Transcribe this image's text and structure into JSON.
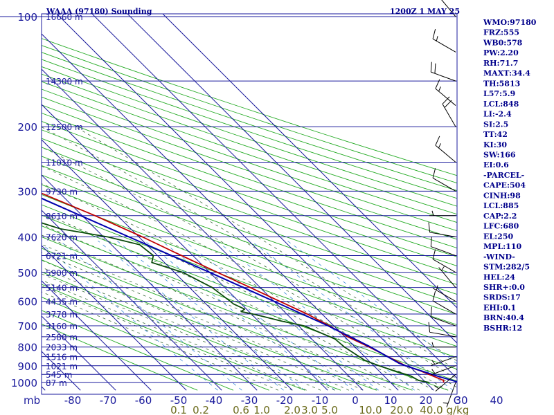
{
  "header": {
    "title": "WAAA (97180) Sounding",
    "valid_time": "1200Z  1 MAY 25"
  },
  "colors": {
    "isobar": "#1a1a9c",
    "isotherm_temp_labels": "#1a1a9c",
    "dry_adiabat": "#22aa22",
    "moist_adiabat": "#3a6a3a",
    "mixing_ratio": "#3a8ad8",
    "temperature": "#c00000",
    "dewpoint": "#0a4a0a",
    "parcel": "#0000b0",
    "mixing_ratio_labels": "#6a6a1a",
    "wind_barbs": "#000000",
    "text": "#00008b"
  },
  "axis_labels": {
    "pressure_unit": "mb",
    "mixing_ratio_unit": "g/kg",
    "temperature_unit": "C"
  },
  "stats": [
    "WMO:97180",
    "FRZ:555",
    "WB0:578",
    "PW:2.20",
    "RH:71.7",
    "MAXT:34.4",
    "TH:5813",
    "L57:5.9",
    "LCL:848",
    "LI:-2.4",
    "SI:2.5",
    "TT:42",
    "KI:30",
    "SW:166",
    "EI:0.6",
    "-PARCEL-",
    "CAPE:504",
    "CINH:98",
    "LCL:885",
    "CAP:2.2",
    "LFC:680",
    "EL:250",
    "MPL:110",
    "-WIND-",
    "STM:282/5",
    "HEL:24",
    "SHR+:0.0",
    "SRDS:17",
    "EHI:0.1",
    "BRN:40.4",
    "BSHR:12"
  ],
  "chart_data": {
    "type": "line",
    "chart_kind": "skew-t log-p sounding",
    "pressure_levels": [
      100,
      200,
      300,
      400,
      500,
      600,
      700,
      800,
      900,
      1000
    ],
    "temperature_ticks": [
      -80,
      -70,
      -60,
      -50,
      -40,
      -30,
      -20,
      -10,
      0,
      10,
      20,
      30,
      40
    ],
    "mixing_ratio_ticks": [
      "0.1",
      "0.2",
      "0.6",
      "1.0",
      "2.0",
      "3.0",
      "5.0",
      "10.0",
      "20.0",
      "40.0"
    ],
    "height_labels": [
      {
        "p": 100,
        "label": "16660 m"
      },
      {
        "p": 150,
        "label": "14300 m"
      },
      {
        "p": 200,
        "label": "12500 m"
      },
      {
        "p": 250,
        "label": "11010 m"
      },
      {
        "p": 300,
        "label": "9730 m"
      },
      {
        "p": 350,
        "label": "8610 m"
      },
      {
        "p": 400,
        "label": "7620 m"
      },
      {
        "p": 450,
        "label": "6721 m"
      },
      {
        "p": 500,
        "label": "5900 m"
      },
      {
        "p": 550,
        "label": "5140 m"
      },
      {
        "p": 600,
        "label": "4435 m"
      },
      {
        "p": 650,
        "label": "3778 m"
      },
      {
        "p": 700,
        "label": "3160 m"
      },
      {
        "p": 750,
        "label": "2580 m"
      },
      {
        "p": 800,
        "label": "2033 m"
      },
      {
        "p": 850,
        "label": "1516 m"
      },
      {
        "p": 900,
        "label": "1021 m"
      },
      {
        "p": 950,
        "label": "545 m"
      },
      {
        "p": 1000,
        "label": "87 m"
      }
    ],
    "series": [
      {
        "role": "temperature",
        "points": [
          {
            "p": 1000,
            "t": 25.0
          },
          {
            "p": 987,
            "t": 25.6
          },
          {
            "p": 960,
            "t": 23.8
          },
          {
            "p": 925,
            "t": 21.4
          },
          {
            "p": 900,
            "t": 19.0
          },
          {
            "p": 850,
            "t": 16.6
          },
          {
            "p": 800,
            "t": 14.0
          },
          {
            "p": 750,
            "t": 10.8
          },
          {
            "p": 700,
            "t": 8.8
          },
          {
            "p": 650,
            "t": 5.8
          },
          {
            "p": 600,
            "t": 1.6
          },
          {
            "p": 550,
            "t": -2.8
          },
          {
            "p": 500,
            "t": -7.8
          },
          {
            "p": 450,
            "t": -13.2
          },
          {
            "p": 400,
            "t": -19.0
          },
          {
            "p": 350,
            "t": -26.4
          },
          {
            "p": 300,
            "t": -36.0
          },
          {
            "p": 250,
            "t": -46.0
          },
          {
            "p": 200,
            "t": -56.0
          },
          {
            "p": 150,
            "t": -67.0
          },
          {
            "p": 120,
            "t": -75.0
          },
          {
            "p": 100,
            "t": -80.5
          }
        ]
      },
      {
        "role": "dewpoint",
        "points": [
          {
            "p": 1000,
            "t": 21.0
          },
          {
            "p": 987,
            "t": 18.5
          },
          {
            "p": 960,
            "t": 17.6
          },
          {
            "p": 925,
            "t": 14.0
          },
          {
            "p": 900,
            "t": 11.5
          },
          {
            "p": 870,
            "t": 9.0
          },
          {
            "p": 800,
            "t": 7.0
          },
          {
            "p": 760,
            "t": 6.6
          },
          {
            "p": 700,
            "t": 1.6
          },
          {
            "p": 680,
            "t": -3.4
          },
          {
            "p": 660,
            "t": -7.4
          },
          {
            "p": 650,
            "t": -9.6
          },
          {
            "p": 640,
            "t": -12.2
          },
          {
            "p": 630,
            "t": -10.5
          },
          {
            "p": 610,
            "t": -12.2
          },
          {
            "p": 600,
            "t": -12.4
          },
          {
            "p": 550,
            "t": -13.6
          },
          {
            "p": 500,
            "t": -17.6
          },
          {
            "p": 470,
            "t": -23.6
          },
          {
            "p": 450,
            "t": -21.2
          },
          {
            "p": 420,
            "t": -22.0
          },
          {
            "p": 400,
            "t": -28.8
          },
          {
            "p": 380,
            "t": -40.0
          },
          {
            "p": 340,
            "t": -50.8
          },
          {
            "p": 330,
            "t": -48.8
          },
          {
            "p": 300,
            "t": -45.2
          },
          {
            "p": 280,
            "t": -47.4
          },
          {
            "p": 250,
            "t": -52.0
          },
          {
            "p": 200,
            "t": -64.0
          },
          {
            "p": 150,
            "t": -74.0
          },
          {
            "p": 110,
            "t": -82.0
          }
        ]
      },
      {
        "role": "parcel",
        "points": [
          {
            "p": 1000,
            "t": 29.5
          },
          {
            "p": 960,
            "t": 25.0
          },
          {
            "p": 900,
            "t": 19.0
          },
          {
            "p": 885,
            "t": 17.8
          },
          {
            "p": 800,
            "t": 14.4
          },
          {
            "p": 700,
            "t": 8.4
          },
          {
            "p": 600,
            "t": 0.0
          },
          {
            "p": 500,
            "t": -10.0
          },
          {
            "p": 400,
            "t": -22.8
          },
          {
            "p": 300,
            "t": -39.2
          },
          {
            "p": 250,
            "t": -49.0
          },
          {
            "p": 200,
            "t": -60.0
          },
          {
            "p": 150,
            "t": -70.0
          },
          {
            "p": 110,
            "t": -80.0
          }
        ]
      }
    ],
    "wind_barbs": [
      {
        "p": 1000,
        "dir": 200,
        "kt": 5
      },
      {
        "p": 950,
        "dir": 230,
        "kt": 5
      },
      {
        "p": 900,
        "dir": 250,
        "kt": 5
      },
      {
        "p": 850,
        "dir": 250,
        "kt": 5
      },
      {
        "p": 800,
        "dir": 270,
        "kt": 5
      },
      {
        "p": 750,
        "dir": 280,
        "kt": 10
      },
      {
        "p": 700,
        "dir": 290,
        "kt": 10
      },
      {
        "p": 650,
        "dir": 300,
        "kt": 10
      },
      {
        "p": 600,
        "dir": 300,
        "kt": 5
      },
      {
        "p": 550,
        "dir": 320,
        "kt": 5
      },
      {
        "p": 500,
        "dir": 300,
        "kt": 10
      },
      {
        "p": 450,
        "dir": 290,
        "kt": 10
      },
      {
        "p": 400,
        "dir": 280,
        "kt": 10
      },
      {
        "p": 350,
        "dir": 270,
        "kt": 5
      },
      {
        "p": 300,
        "dir": 300,
        "kt": 10
      },
      {
        "p": 250,
        "dir": 310,
        "kt": 15
      },
      {
        "p": 200,
        "dir": 330,
        "kt": 20
      },
      {
        "p": 175,
        "dir": 310,
        "kt": 15
      },
      {
        "p": 150,
        "dir": 290,
        "kt": 20
      },
      {
        "p": 125,
        "dir": 300,
        "kt": 15
      },
      {
        "p": 100,
        "dir": 320,
        "kt": 15
      }
    ]
  }
}
